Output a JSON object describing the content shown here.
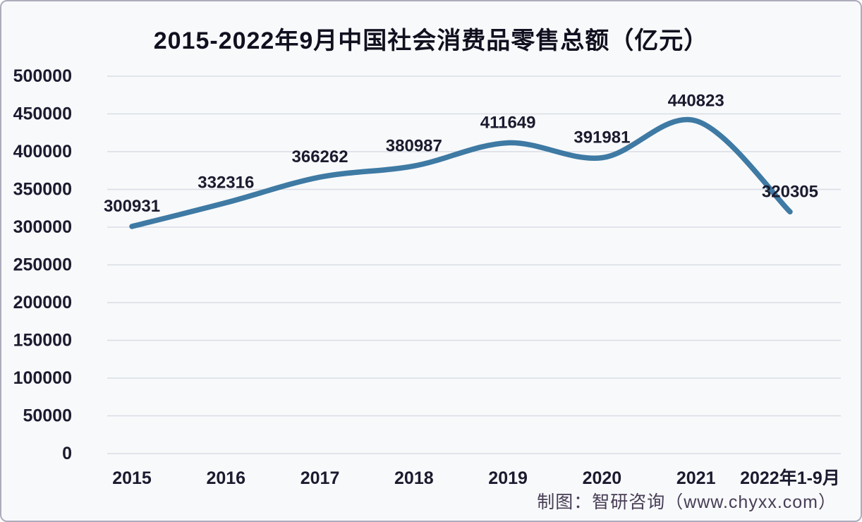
{
  "title": "2015-2022年9月中国社会消费品零售总额（亿元）",
  "attribution": "制图：智研咨询（www.chyxx.com）",
  "colors": {
    "line": "#3e7aa4",
    "gridline": "#d8dde4",
    "tick_text": "#1b1b2f",
    "title_text": "#10101f",
    "attribution_text": "#473d56",
    "background": "#f8f9fb",
    "border": "#acacbc"
  },
  "chart_data": {
    "type": "line",
    "title": "2015-2022年9月中国社会消费品零售总额（亿元）",
    "categories": [
      "2015",
      "2016",
      "2017",
      "2018",
      "2019",
      "2020",
      "2021",
      "2022年1-9月"
    ],
    "values": [
      300931,
      332316,
      366262,
      380987,
      411649,
      391981,
      440823,
      320305
    ],
    "xlabel": "",
    "ylabel": "",
    "ylim": [
      0,
      500000
    ],
    "yticks": [
      0,
      50000,
      100000,
      150000,
      200000,
      250000,
      300000,
      350000,
      400000,
      450000,
      500000
    ],
    "grid": true,
    "legend": false,
    "data_labels": true,
    "line_color": "#3e7aa4",
    "gridline_color": "#d8dde4",
    "source_note": "制图：智研咨询（www.chyxx.com）"
  }
}
